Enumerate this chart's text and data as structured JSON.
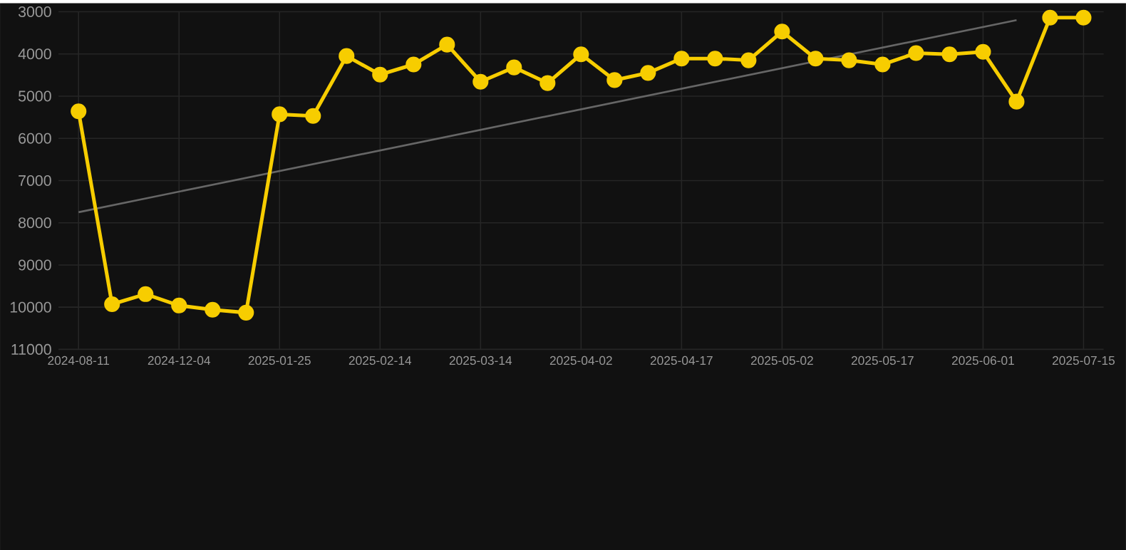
{
  "chart_data": {
    "type": "line",
    "categories": [
      "2024-08-11",
      null,
      null,
      "2024-12-04",
      null,
      null,
      "2025-01-25",
      null,
      null,
      "2025-02-14",
      null,
      null,
      "2025-03-14",
      null,
      null,
      "2025-04-02",
      null,
      null,
      "2025-04-17",
      null,
      null,
      "2025-05-02",
      null,
      null,
      "2025-05-17",
      null,
      null,
      "2025-06-01",
      null,
      null,
      "2025-07-15"
    ],
    "series": [
      {
        "color": "#f7cd00",
        "marker": "circle",
        "values": [
          5360,
          9930,
          9690,
          9960,
          10060,
          10130,
          5430,
          5470,
          4050,
          4490,
          4250,
          3780,
          4660,
          4320,
          4690,
          4010,
          4620,
          4450,
          4110,
          4110,
          4150,
          3470,
          4110,
          4150,
          4250,
          3980,
          4010,
          3950,
          5130,
          3140,
          3140
        ]
      },
      {
        "type": "line",
        "color": "#666666",
        "marker": "none",
        "values": [
          7750,
          null,
          null,
          null,
          null,
          null,
          null,
          null,
          null,
          null,
          null,
          null,
          null,
          null,
          null,
          null,
          null,
          null,
          null,
          null,
          null,
          null,
          null,
          null,
          null,
          null,
          null,
          null,
          3200,
          null,
          null
        ]
      }
    ],
    "ylim": [
      11000,
      3000
    ],
    "yticks": [
      3000,
      4000,
      5000,
      6000,
      7000,
      8000,
      9000,
      10000,
      11000
    ],
    "grid": true,
    "line_style": "solid"
  }
}
